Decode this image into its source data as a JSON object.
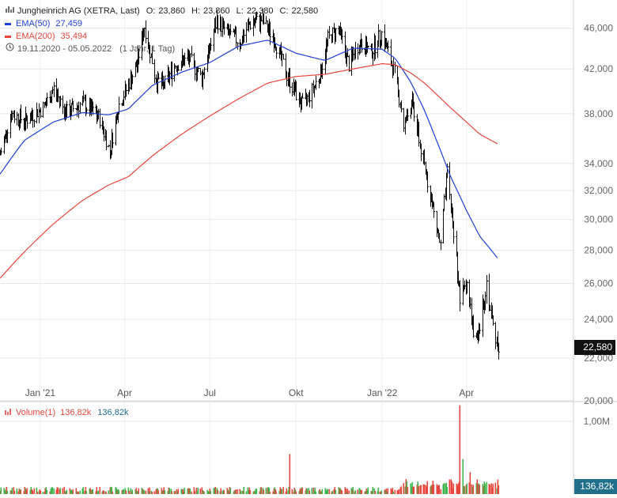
{
  "header": {
    "title": "Jungheinrich AG (XETRA, Last)",
    "ohlc": {
      "open_label": "O:",
      "open": "23,860",
      "high_label": "H:",
      "high": "23,860",
      "low_label": "L:",
      "low": "22,380",
      "close_label": "C:",
      "close": "22,580"
    },
    "ema50": {
      "label": "EMA(50)",
      "value": "27,459",
      "color": "#1f3fd6"
    },
    "ema200": {
      "label": "EMA(200)",
      "value": "35,494",
      "color": "#e8463c"
    },
    "period": "19.11.2020 - 05.05.2022",
    "interval": "(1 Jahr, 1 Tag)",
    "chart_icon": "bar-chart-icon",
    "clock_icon": "clock-icon"
  },
  "volume": {
    "label": "Volume(1)",
    "value_red": "136,82k",
    "value_blue": "136,82k",
    "last_label": "136,82k",
    "axis_label": "1,00M"
  },
  "last_price": "22,580",
  "colors": {
    "price": "#111111",
    "ema50": "#1f3fd6",
    "ema200": "#e8463c",
    "vol_up": "#3cb44b",
    "vol_down": "#e8463c",
    "grid": "#e6e6e6"
  },
  "chart_data": {
    "type": "line",
    "scale": "log",
    "x_ticks": [
      "Jan '21",
      "Apr",
      "Jul",
      "Okt",
      "Jan '22",
      "Apr"
    ],
    "x_tick_dates": [
      "2021-01-01",
      "2021-04-01",
      "2021-07-01",
      "2021-10-01",
      "2022-01-01",
      "2022-04-01"
    ],
    "y_ticks": [
      "46,000",
      "42,000",
      "38,000",
      "34,000",
      "32,000",
      "30,000",
      "28,000",
      "26,000",
      "24,000",
      "22,000",
      "20,000"
    ],
    "y_tick_values": [
      46,
      42,
      38,
      34,
      32,
      30,
      28,
      26,
      24,
      22,
      20
    ],
    "ylim": [
      20,
      49
    ],
    "xlim": [
      "2020-11-19",
      "2022-05-05"
    ],
    "series": [
      {
        "name": "Jungheinrich AG",
        "values": [
          {
            "x": "2020-11-19",
            "y": 34.7
          },
          {
            "x": "2020-12-01",
            "y": 38.0
          },
          {
            "x": "2020-12-15",
            "y": 37.4
          },
          {
            "x": "2021-01-05",
            "y": 38.6
          },
          {
            "x": "2021-01-15",
            "y": 40.2
          },
          {
            "x": "2021-01-28",
            "y": 38.1
          },
          {
            "x": "2021-02-15",
            "y": 38.9
          },
          {
            "x": "2021-03-05",
            "y": 37.6
          },
          {
            "x": "2021-03-16",
            "y": 35.0
          },
          {
            "x": "2021-03-25",
            "y": 38.6
          },
          {
            "x": "2021-04-06",
            "y": 40.8
          },
          {
            "x": "2021-04-14",
            "y": 42.5
          },
          {
            "x": "2021-04-22",
            "y": 46.2
          },
          {
            "x": "2021-05-04",
            "y": 41.1
          },
          {
            "x": "2021-05-12",
            "y": 40.4
          },
          {
            "x": "2021-05-25",
            "y": 42.4
          },
          {
            "x": "2021-06-08",
            "y": 43.0
          },
          {
            "x": "2021-06-22",
            "y": 41.2
          },
          {
            "x": "2021-07-01",
            "y": 44.0
          },
          {
            "x": "2021-07-08",
            "y": 46.8
          },
          {
            "x": "2021-07-20",
            "y": 45.5
          },
          {
            "x": "2021-08-02",
            "y": 44.6
          },
          {
            "x": "2021-08-12",
            "y": 46.4
          },
          {
            "x": "2021-08-25",
            "y": 46.9
          },
          {
            "x": "2021-09-08",
            "y": 44.8
          },
          {
            "x": "2021-09-20",
            "y": 41.6
          },
          {
            "x": "2021-10-01",
            "y": 39.7
          },
          {
            "x": "2021-10-08",
            "y": 38.7
          },
          {
            "x": "2021-10-18",
            "y": 40.0
          },
          {
            "x": "2021-10-27",
            "y": 41.6
          },
          {
            "x": "2021-11-04",
            "y": 44.9
          },
          {
            "x": "2021-11-15",
            "y": 46.0
          },
          {
            "x": "2021-11-26",
            "y": 42.4
          },
          {
            "x": "2021-12-08",
            "y": 44.6
          },
          {
            "x": "2021-12-20",
            "y": 43.6
          },
          {
            "x": "2021-12-31",
            "y": 45.5
          },
          {
            "x": "2022-01-07",
            "y": 43.6
          },
          {
            "x": "2022-01-14",
            "y": 41.6
          },
          {
            "x": "2022-01-24",
            "y": 37.2
          },
          {
            "x": "2022-02-02",
            "y": 38.9
          },
          {
            "x": "2022-02-11",
            "y": 35.0
          },
          {
            "x": "2022-02-22",
            "y": 31.4
          },
          {
            "x": "2022-03-04",
            "y": 28.2
          },
          {
            "x": "2022-03-11",
            "y": 33.2
          },
          {
            "x": "2022-03-18",
            "y": 29.2
          },
          {
            "x": "2022-03-25",
            "y": 25.0
          },
          {
            "x": "2022-04-01",
            "y": 26.2
          },
          {
            "x": "2022-04-08",
            "y": 23.2
          },
          {
            "x": "2022-04-13",
            "y": 22.8
          },
          {
            "x": "2022-04-22",
            "y": 26.0
          },
          {
            "x": "2022-04-29",
            "y": 23.6
          },
          {
            "x": "2022-05-05",
            "y": 22.58
          }
        ]
      },
      {
        "name": "EMA(50)",
        "values": [
          {
            "x": "2020-11-19",
            "y": 33.2
          },
          {
            "x": "2020-12-15",
            "y": 35.8
          },
          {
            "x": "2021-01-15",
            "y": 37.3
          },
          {
            "x": "2021-02-15",
            "y": 38.1
          },
          {
            "x": "2021-03-15",
            "y": 37.9
          },
          {
            "x": "2021-04-05",
            "y": 38.4
          },
          {
            "x": "2021-05-01",
            "y": 40.5
          },
          {
            "x": "2021-06-01",
            "y": 41.7
          },
          {
            "x": "2021-07-01",
            "y": 42.6
          },
          {
            "x": "2021-08-01",
            "y": 44.2
          },
          {
            "x": "2021-09-01",
            "y": 44.8
          },
          {
            "x": "2021-10-01",
            "y": 43.5
          },
          {
            "x": "2021-11-01",
            "y": 42.8
          },
          {
            "x": "2021-12-01",
            "y": 44.0
          },
          {
            "x": "2022-01-01",
            "y": 43.9
          },
          {
            "x": "2022-01-15",
            "y": 43.0
          },
          {
            "x": "2022-02-01",
            "y": 40.7
          },
          {
            "x": "2022-02-15",
            "y": 38.3
          },
          {
            "x": "2022-03-01",
            "y": 35.6
          },
          {
            "x": "2022-03-15",
            "y": 33.0
          },
          {
            "x": "2022-04-01",
            "y": 30.6
          },
          {
            "x": "2022-04-15",
            "y": 28.9
          },
          {
            "x": "2022-05-05",
            "y": 27.46
          }
        ]
      },
      {
        "name": "EMA(200)",
        "values": [
          {
            "x": "2020-11-19",
            "y": 26.3
          },
          {
            "x": "2020-12-15",
            "y": 27.9
          },
          {
            "x": "2021-01-15",
            "y": 29.7
          },
          {
            "x": "2021-02-15",
            "y": 31.3
          },
          {
            "x": "2021-03-15",
            "y": 32.4
          },
          {
            "x": "2021-04-05",
            "y": 33.0
          },
          {
            "x": "2021-05-01",
            "y": 34.6
          },
          {
            "x": "2021-06-01",
            "y": 36.3
          },
          {
            "x": "2021-07-01",
            "y": 37.8
          },
          {
            "x": "2021-08-01",
            "y": 39.3
          },
          {
            "x": "2021-09-01",
            "y": 40.7
          },
          {
            "x": "2021-10-01",
            "y": 41.3
          },
          {
            "x": "2021-11-01",
            "y": 41.5
          },
          {
            "x": "2021-12-01",
            "y": 42.0
          },
          {
            "x": "2022-01-01",
            "y": 42.5
          },
          {
            "x": "2022-01-15",
            "y": 42.4
          },
          {
            "x": "2022-02-01",
            "y": 41.6
          },
          {
            "x": "2022-02-15",
            "y": 40.7
          },
          {
            "x": "2022-03-01",
            "y": 39.6
          },
          {
            "x": "2022-03-15",
            "y": 38.5
          },
          {
            "x": "2022-04-01",
            "y": 37.3
          },
          {
            "x": "2022-04-15",
            "y": 36.3
          },
          {
            "x": "2022-05-05",
            "y": 35.49
          }
        ]
      }
    ],
    "volume_ylim": [
      0,
      1.25
    ],
    "volume_ticks": [
      "1,00M"
    ],
    "volume_tick_values": [
      1.0
    ],
    "volume_spikes": [
      {
        "x": "2021-09-24",
        "y": 0.55
      },
      {
        "x": "2022-03-25",
        "y": 1.22
      },
      {
        "x": "2022-03-28",
        "y": 0.48
      },
      {
        "x": "2022-04-05",
        "y": 0.3
      }
    ],
    "grid": true,
    "legend_position": "top-left"
  }
}
